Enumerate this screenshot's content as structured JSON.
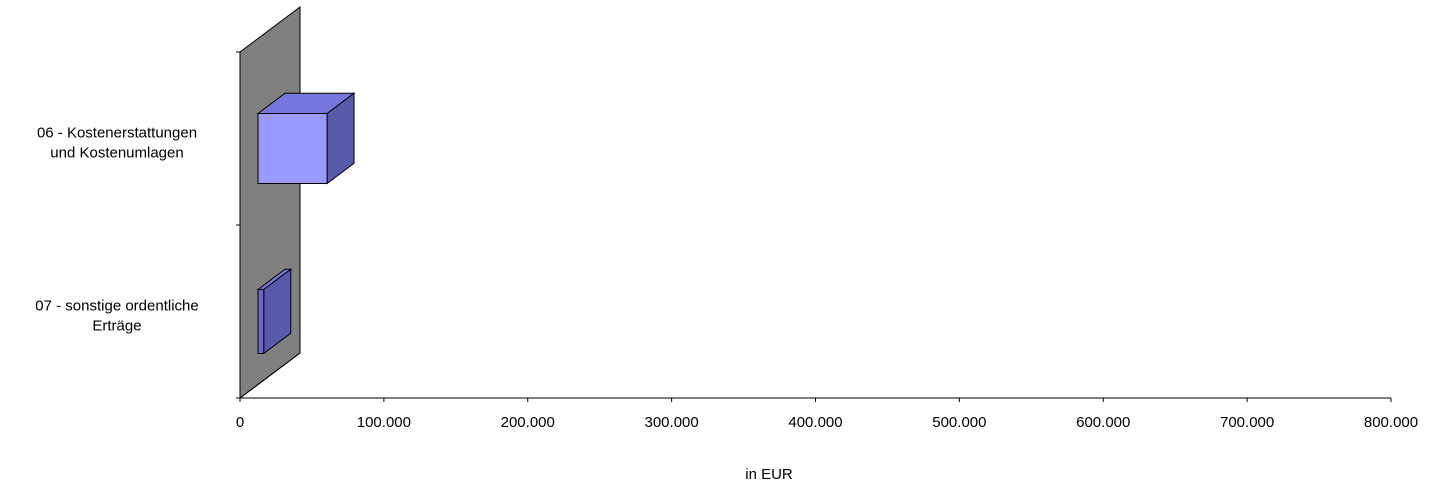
{
  "chart_data": {
    "type": "bar",
    "orientation": "horizontal",
    "style": "3d",
    "categories": [
      "06 - Kostenerstattungen und Kostenumlagen",
      "07 - sonstige ordentliche Erträge"
    ],
    "category_lines": [
      [
        "06 - Kostenerstattungen",
        "und Kostenumlagen"
      ],
      [
        "07 - sonstige ordentliche",
        "Erträge"
      ]
    ],
    "values": [
      48000,
      4000
    ],
    "xlim": [
      0,
      800000
    ],
    "x_ticks": [
      0,
      100000,
      200000,
      300000,
      400000,
      500000,
      600000,
      700000,
      800000
    ],
    "x_tick_labels": [
      "0",
      "100.000",
      "200.000",
      "300.000",
      "400.000",
      "500.000",
      "600.000",
      "700.000",
      "800.000"
    ],
    "xlabel": "in EUR",
    "title": "",
    "grid": false,
    "bar_colors": [
      "#9999ff",
      "#6666cc"
    ],
    "wall_color": "#808080"
  }
}
